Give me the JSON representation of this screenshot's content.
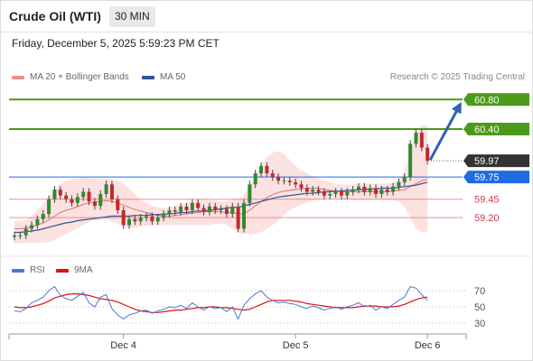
{
  "header": {
    "title": "Crude Oil (WTI)",
    "timeframe": "30 MIN"
  },
  "datetime": "Friday, December 5, 2025 5:59:23 PM CET",
  "legend": {
    "ma20_bb": {
      "label": "MA 20 + Bollinger Bands",
      "color": "#f28b8b"
    },
    "ma50": {
      "label": "MA 50",
      "color": "#2f5597"
    }
  },
  "credit": "Research © 2025 Trading Central",
  "chart_data": {
    "type": "candlestick",
    "y_range": [
      58.75,
      60.95
    ],
    "x_labels": [
      {
        "label": "Dec 4",
        "index": 19
      },
      {
        "label": "Dec 5",
        "index": 49
      },
      {
        "label": "Dec 6",
        "index": 72
      }
    ],
    "levels": [
      {
        "label": "60.80",
        "value": 60.8,
        "kind": "resistance",
        "color": "#4c9a1a"
      },
      {
        "label": "60.40",
        "value": 60.4,
        "kind": "resistance",
        "color": "#4c9a1a"
      },
      {
        "label": "59.97",
        "value": 59.97,
        "kind": "last",
        "color": "#333333"
      },
      {
        "label": "59.75",
        "value": 59.75,
        "kind": "pivot",
        "color": "#1e6ce0"
      },
      {
        "label": "59.45",
        "value": 59.45,
        "kind": "support",
        "color": "#e0707a"
      },
      {
        "label": "59.20",
        "value": 59.2,
        "kind": "support",
        "color": "#e0707a"
      }
    ],
    "close": [
      58.96,
      58.96,
      59.05,
      59.1,
      59.18,
      59.25,
      59.45,
      59.58,
      59.5,
      59.45,
      59.4,
      59.48,
      59.55,
      59.42,
      59.36,
      59.52,
      59.65,
      59.45,
      59.3,
      59.1,
      59.18,
      59.15,
      59.2,
      59.22,
      59.15,
      59.2,
      59.25,
      59.3,
      59.28,
      59.35,
      59.3,
      59.4,
      59.33,
      59.28,
      59.35,
      59.3,
      59.32,
      59.25,
      59.35,
      59.05,
      59.4,
      59.65,
      59.8,
      59.9,
      59.8,
      59.75,
      59.7,
      59.7,
      59.68,
      59.65,
      59.6,
      59.55,
      59.58,
      59.55,
      59.5,
      59.52,
      59.55,
      59.5,
      59.55,
      59.58,
      59.62,
      59.55,
      59.6,
      59.52,
      59.58,
      59.55,
      59.62,
      59.68,
      59.75,
      60.2,
      60.35,
      60.15,
      59.97
    ],
    "ma20": [
      59.05,
      59.05,
      59.06,
      59.08,
      59.1,
      59.13,
      59.17,
      59.22,
      59.27,
      59.3,
      59.32,
      59.35,
      59.38,
      59.4,
      59.41,
      59.42,
      59.43,
      59.42,
      59.4,
      59.37,
      59.34,
      59.31,
      59.29,
      59.27,
      59.25,
      59.23,
      59.22,
      59.22,
      59.23,
      59.24,
      59.25,
      59.26,
      59.27,
      59.28,
      59.28,
      59.28,
      59.28,
      59.27,
      59.27,
      59.25,
      59.25,
      59.3,
      59.36,
      59.42,
      59.47,
      59.51,
      59.54,
      59.56,
      59.57,
      59.58,
      59.59,
      59.6,
      59.6,
      59.6,
      59.58,
      59.57,
      59.56,
      59.55,
      59.55,
      59.55,
      59.55,
      59.55,
      59.55,
      59.55,
      59.55,
      59.55,
      59.56,
      59.57,
      59.58,
      59.62,
      59.66,
      59.7,
      59.72
    ],
    "bb_upper": [
      59.15,
      59.15,
      59.17,
      59.22,
      59.3,
      59.38,
      59.48,
      59.58,
      59.66,
      59.7,
      59.72,
      59.73,
      59.74,
      59.74,
      59.73,
      59.73,
      59.73,
      59.72,
      59.7,
      59.66,
      59.6,
      59.52,
      59.44,
      59.4,
      59.36,
      59.34,
      59.33,
      59.34,
      59.36,
      59.38,
      59.4,
      59.42,
      59.44,
      59.44,
      59.44,
      59.43,
      59.42,
      59.42,
      59.45,
      59.46,
      59.5,
      59.62,
      59.78,
      59.92,
      60.02,
      60.08,
      60.1,
      60.06,
      59.98,
      59.9,
      59.84,
      59.8,
      59.76,
      59.73,
      59.7,
      59.68,
      59.66,
      59.65,
      59.65,
      59.65,
      59.66,
      59.66,
      59.66,
      59.66,
      59.66,
      59.66,
      59.68,
      59.72,
      59.82,
      60.1,
      60.35,
      60.45,
      60.45
    ],
    "bb_lower": [
      58.85,
      58.85,
      58.86,
      58.86,
      58.86,
      58.86,
      58.87,
      58.9,
      58.94,
      58.98,
      59.02,
      59.06,
      59.1,
      59.14,
      59.16,
      59.17,
      59.17,
      59.15,
      59.12,
      59.08,
      59.06,
      59.06,
      59.08,
      59.09,
      59.1,
      59.1,
      59.1,
      59.1,
      59.1,
      59.1,
      59.1,
      59.1,
      59.1,
      59.1,
      59.1,
      59.12,
      59.12,
      59.1,
      59.05,
      59.0,
      58.98,
      58.98,
      58.98,
      59.0,
      59.05,
      59.1,
      59.16,
      59.24,
      59.3,
      59.34,
      59.38,
      59.4,
      59.43,
      59.45,
      59.46,
      59.46,
      59.46,
      59.45,
      59.45,
      59.44,
      59.44,
      59.44,
      59.44,
      59.44,
      59.44,
      59.44,
      59.44,
      59.42,
      59.35,
      59.2,
      59.05,
      59.0,
      59.02
    ],
    "ma50": [
      59.0,
      59.0,
      59.01,
      59.02,
      59.03,
      59.05,
      59.07,
      59.09,
      59.11,
      59.13,
      59.14,
      59.16,
      59.17,
      59.18,
      59.19,
      59.2,
      59.21,
      59.22,
      59.22,
      59.22,
      59.22,
      59.23,
      59.23,
      59.23,
      59.24,
      59.24,
      59.25,
      59.25,
      59.26,
      59.27,
      59.27,
      59.28,
      59.29,
      59.29,
      59.3,
      59.31,
      59.32,
      59.33,
      59.34,
      59.34,
      59.36,
      59.38,
      59.4,
      59.42,
      59.44,
      59.46,
      59.48,
      59.49,
      59.5,
      59.51,
      59.52,
      59.53,
      59.53,
      59.54,
      59.55,
      59.55,
      59.56,
      59.56,
      59.57,
      59.57,
      59.58,
      59.58,
      59.59,
      59.59,
      59.6,
      59.6,
      59.6,
      59.61,
      59.62,
      59.63,
      59.64,
      59.66,
      59.68
    ],
    "forecast": {
      "from": 59.97,
      "to": 60.8
    },
    "rsi": {
      "legend": {
        "rsi": "RSI",
        "ma9": "9MA"
      },
      "rsi_color": "#4a78d6",
      "ma9_color": "#dd1111",
      "y_range": [
        20,
        80
      ],
      "ticks": [
        70,
        50,
        30
      ],
      "rsi": [
        45,
        44,
        48,
        55,
        58,
        62,
        70,
        75,
        64,
        60,
        58,
        63,
        68,
        55,
        50,
        62,
        65,
        48,
        40,
        35,
        40,
        42,
        45,
        46,
        42,
        45,
        47,
        50,
        49,
        52,
        48,
        55,
        50,
        46,
        50,
        48,
        49,
        44,
        50,
        35,
        52,
        60,
        66,
        70,
        62,
        58,
        55,
        56,
        54,
        53,
        50,
        48,
        51,
        49,
        46,
        48,
        50,
        47,
        50,
        52,
        55,
        50,
        52,
        46,
        50,
        48,
        53,
        58,
        62,
        75,
        73,
        65,
        58
      ],
      "ma9": [
        50,
        49,
        49,
        50,
        52,
        54,
        57,
        61,
        63,
        65,
        66,
        66,
        65,
        64,
        62,
        60,
        59,
        58,
        56,
        53,
        50,
        47,
        45,
        44,
        43,
        43,
        44,
        45,
        46,
        46,
        47,
        48,
        49,
        49,
        50,
        50,
        49,
        49,
        48,
        47,
        46,
        47,
        50,
        53,
        56,
        58,
        58,
        58,
        58,
        57,
        56,
        54,
        53,
        52,
        51,
        50,
        49,
        49,
        49,
        49,
        50,
        51,
        51,
        51,
        50,
        50,
        50,
        51,
        53,
        56,
        59,
        61,
        62
      ]
    }
  }
}
